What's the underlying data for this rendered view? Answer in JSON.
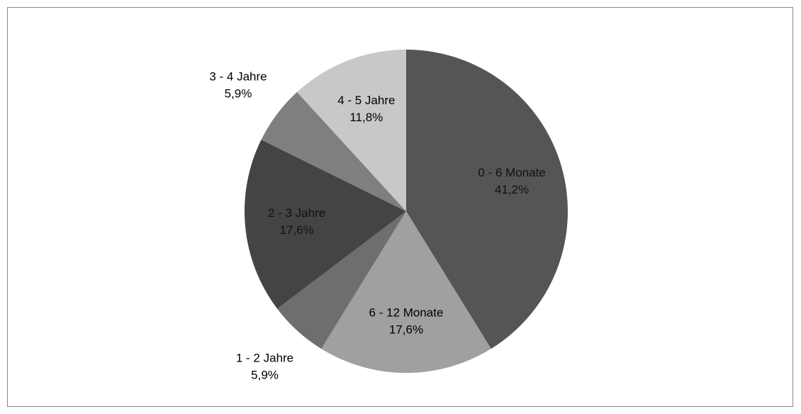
{
  "chart_data": {
    "type": "pie",
    "categories": [
      "0 - 6 Monate",
      "6 - 12 Monate",
      "1 - 2 Jahre",
      "2 - 3 Jahre",
      "3 - 4 Jahre",
      "4 - 5 Jahre"
    ],
    "values": [
      41.2,
      17.6,
      5.9,
      17.6,
      5.9,
      11.8
    ],
    "value_labels": [
      "41,2%",
      "17,6%",
      "5,9%",
      "17,6%",
      "5,9%",
      "11,8%"
    ],
    "colors": [
      "#555555",
      "#a0a0a0",
      "#6e6e6e",
      "#444444",
      "#7f7f7f",
      "#c8c8c8"
    ]
  }
}
